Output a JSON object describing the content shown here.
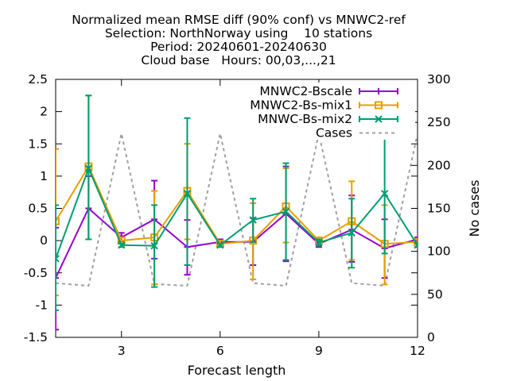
{
  "chart_data": {
    "type": "line",
    "title_lines": [
      "Normalized mean RMSE diff (90% conf) vs MNWC2-ref",
      "Selection: NorthNorway using    10 stations",
      "Period: 20240601-20240630",
      "Cloud base   Hours: 00,03,...,21"
    ],
    "xlabel": "Forecast length",
    "ylabel": "",
    "y2label": "No cases",
    "xlim": [
      1,
      12
    ],
    "ylim": [
      -1.5,
      2.5
    ],
    "y2lim": [
      0,
      300
    ],
    "xticks": [
      3,
      6,
      9,
      12
    ],
    "yticks": [
      -1.5,
      -1,
      -0.5,
      0,
      0.5,
      1,
      1.5,
      2,
      2.5
    ],
    "yticklabels": [
      "-1.5",
      "-1",
      "-0.5",
      "0",
      "0.5",
      "1",
      "1.5",
      "2",
      "2.5"
    ],
    "y2ticks": [
      0,
      50,
      100,
      150,
      200,
      250,
      300
    ],
    "grid": false,
    "legend_position": "top-right",
    "x": [
      1,
      2,
      3,
      4,
      5,
      6,
      7,
      8,
      9,
      10,
      11,
      12
    ],
    "series": [
      {
        "name": "MNWC2-Bscale",
        "color": "#9400d3",
        "marker": "plus",
        "values": [
          -0.58,
          0.5,
          0.05,
          0.33,
          -0.1,
          -0.02,
          -0.02,
          0.42,
          -0.05,
          0.17,
          -0.12,
          0.02
        ],
        "err_low": [
          -1.38,
          0.02,
          -0.02,
          -0.28,
          -0.53,
          -0.05,
          -0.38,
          -0.32,
          -0.1,
          -0.33,
          -0.58,
          0.0
        ],
        "err_high": [
          0.2,
          1.0,
          0.12,
          0.93,
          0.32,
          0.02,
          0.35,
          1.15,
          0.02,
          0.7,
          0.33,
          0.05
        ]
      },
      {
        "name": "MNWC2-Bs-mix1",
        "color": "#e69f00",
        "marker": "square",
        "values": [
          0.3,
          1.15,
          0.0,
          0.05,
          0.77,
          -0.05,
          0.0,
          0.53,
          0.0,
          0.3,
          -0.05,
          -0.02
        ],
        "err_low": [
          -0.85,
          0.02,
          -0.03,
          -0.68,
          0.02,
          -0.08,
          -0.6,
          -0.03,
          -0.05,
          -0.3,
          -0.68,
          -0.05
        ],
        "err_high": [
          1.42,
          2.25,
          0.05,
          0.77,
          1.5,
          0.0,
          0.58,
          1.12,
          0.05,
          0.92,
          0.55,
          0.02
        ]
      },
      {
        "name": "MNWC-Bs-mix2",
        "color": "#009e73",
        "marker": "x",
        "values": [
          -0.28,
          1.12,
          -0.07,
          -0.08,
          0.73,
          -0.07,
          0.32,
          0.45,
          -0.03,
          0.12,
          0.73,
          -0.07
        ],
        "err_low": [
          -1.08,
          0.02,
          -0.1,
          -0.72,
          -0.38,
          -0.1,
          -0.02,
          -0.3,
          -0.08,
          -0.42,
          -0.2,
          -0.1
        ],
        "err_high": [
          0.55,
          2.25,
          -0.05,
          0.55,
          1.9,
          -0.05,
          0.65,
          1.2,
          0.02,
          0.65,
          1.65,
          -0.03
        ]
      },
      {
        "name": "Cases",
        "color": "#a0a0a0",
        "style": "dashed",
        "axis": "y2",
        "values": [
          63,
          60,
          237,
          62,
          60,
          237,
          63,
          60,
          237,
          63,
          60,
          237
        ]
      }
    ]
  }
}
